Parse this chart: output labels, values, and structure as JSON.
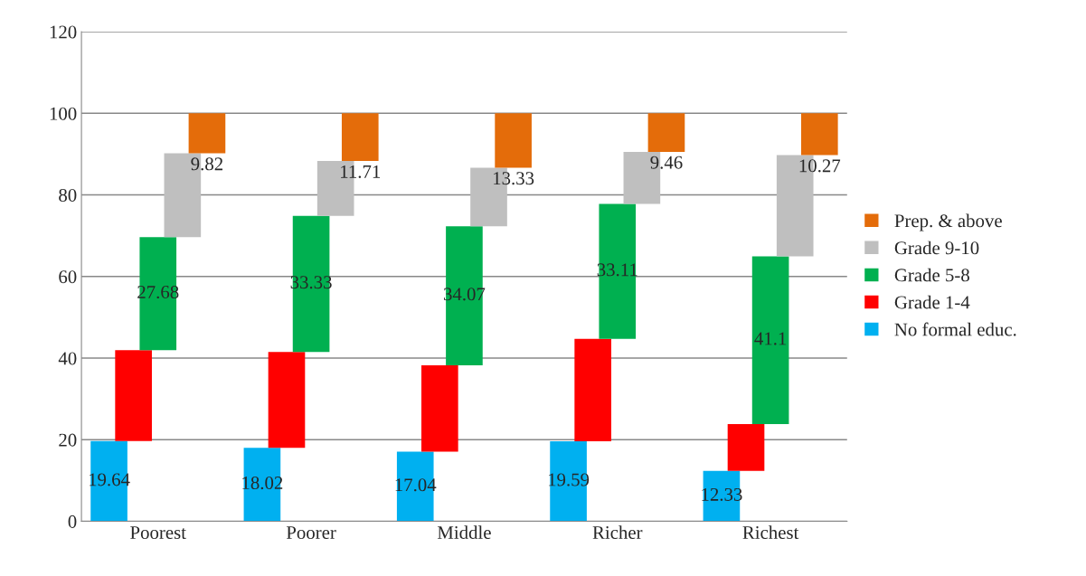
{
  "chart_data": {
    "type": "bar",
    "stacked": true,
    "categories": [
      "Poorest",
      "Poorer",
      "Middle",
      "Richer",
      "Richest"
    ],
    "series": [
      {
        "name": "No formal educ.",
        "color": "#00b0f0",
        "values": [
          19.64,
          18.02,
          17.04,
          19.59,
          12.33
        ],
        "value_labels": [
          "19.64",
          "18.02",
          "17.04",
          "19.59",
          "12.33"
        ]
      },
      {
        "name": "Grade 1-4",
        "color": "#ff0000",
        "values": [
          22.3,
          23.5,
          21.2,
          25.1,
          11.5
        ]
      },
      {
        "name": "Grade 5-8",
        "color": "#00b050",
        "values": [
          27.68,
          33.33,
          34.07,
          33.11,
          41.1
        ],
        "value_labels": [
          "27.68",
          "33.33",
          "34.07",
          "33.11",
          "41.1"
        ]
      },
      {
        "name": "Grade 9-10",
        "color": "#bfbfbf",
        "values": [
          20.56,
          13.44,
          14.36,
          12.74,
          24.8
        ]
      },
      {
        "name": "Prep. & above",
        "color": "#e46c0a",
        "values": [
          9.82,
          11.71,
          13.33,
          9.46,
          10.27
        ],
        "value_labels": [
          "9.82",
          "11.71",
          "13.33",
          "9.46",
          "10.27"
        ]
      }
    ],
    "ylim": [
      0,
      120
    ],
    "yticks": [
      0,
      20,
      40,
      60,
      80,
      100,
      120
    ],
    "grid": "y",
    "legend": "right"
  }
}
